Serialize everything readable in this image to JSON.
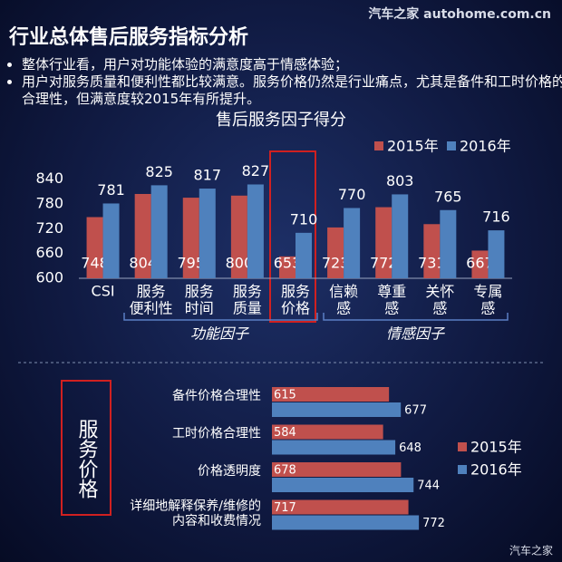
{
  "header": {
    "watermark": "汽车之家 autohome.com.cn",
    "title": "行业总体售后服务指标分析",
    "bullets": [
      "整体行业看，用户对功能体验的满意度高于情感体验；",
      "用户对服务质量和便利性都比较满意。服务价格仍然是行业痛点，尤其是备件和工时价格的合理性，但满意度较2015年有所提升。"
    ]
  },
  "chart_data": [
    {
      "type": "bar",
      "title": "售后服务因子得分",
      "categories": [
        "CSI",
        "服务\n便利性",
        "服务\n时间",
        "服务\n质量",
        "服务\n价格",
        "信赖\n感",
        "尊重\n感",
        "关怀\n感",
        "专属\n感"
      ],
      "series": [
        {
          "name": "2015年",
          "color": "#c0504d",
          "values": [
            748,
            804,
            795,
            800,
            653,
            723,
            772,
            731,
            667
          ]
        },
        {
          "name": "2016年",
          "color": "#4f81bd",
          "values": [
            781,
            825,
            817,
            827,
            710,
            770,
            803,
            765,
            716
          ]
        }
      ],
      "ylim": [
        600,
        850
      ],
      "yticks": [
        600,
        660,
        720,
        780,
        840
      ],
      "legend": "top-right",
      "group_labels": [
        "功能因子",
        "情感因子"
      ]
    },
    {
      "type": "hbar",
      "categories": [
        "备件价格合理性",
        "工时价格合理性",
        "价格透明度",
        "详细地解释保养/维修的\n内容和收费情况"
      ],
      "series": [
        {
          "name": "2015年",
          "color": "#c0504d",
          "values": [
            615,
            584,
            678,
            717
          ]
        },
        {
          "name": "2016年",
          "color": "#4f81bd",
          "values": [
            677,
            648,
            744,
            772
          ]
        }
      ],
      "xlim": [
        0,
        800
      ],
      "legend": "right"
    }
  ],
  "side_label": "服务价格",
  "footer": "汽车之家"
}
